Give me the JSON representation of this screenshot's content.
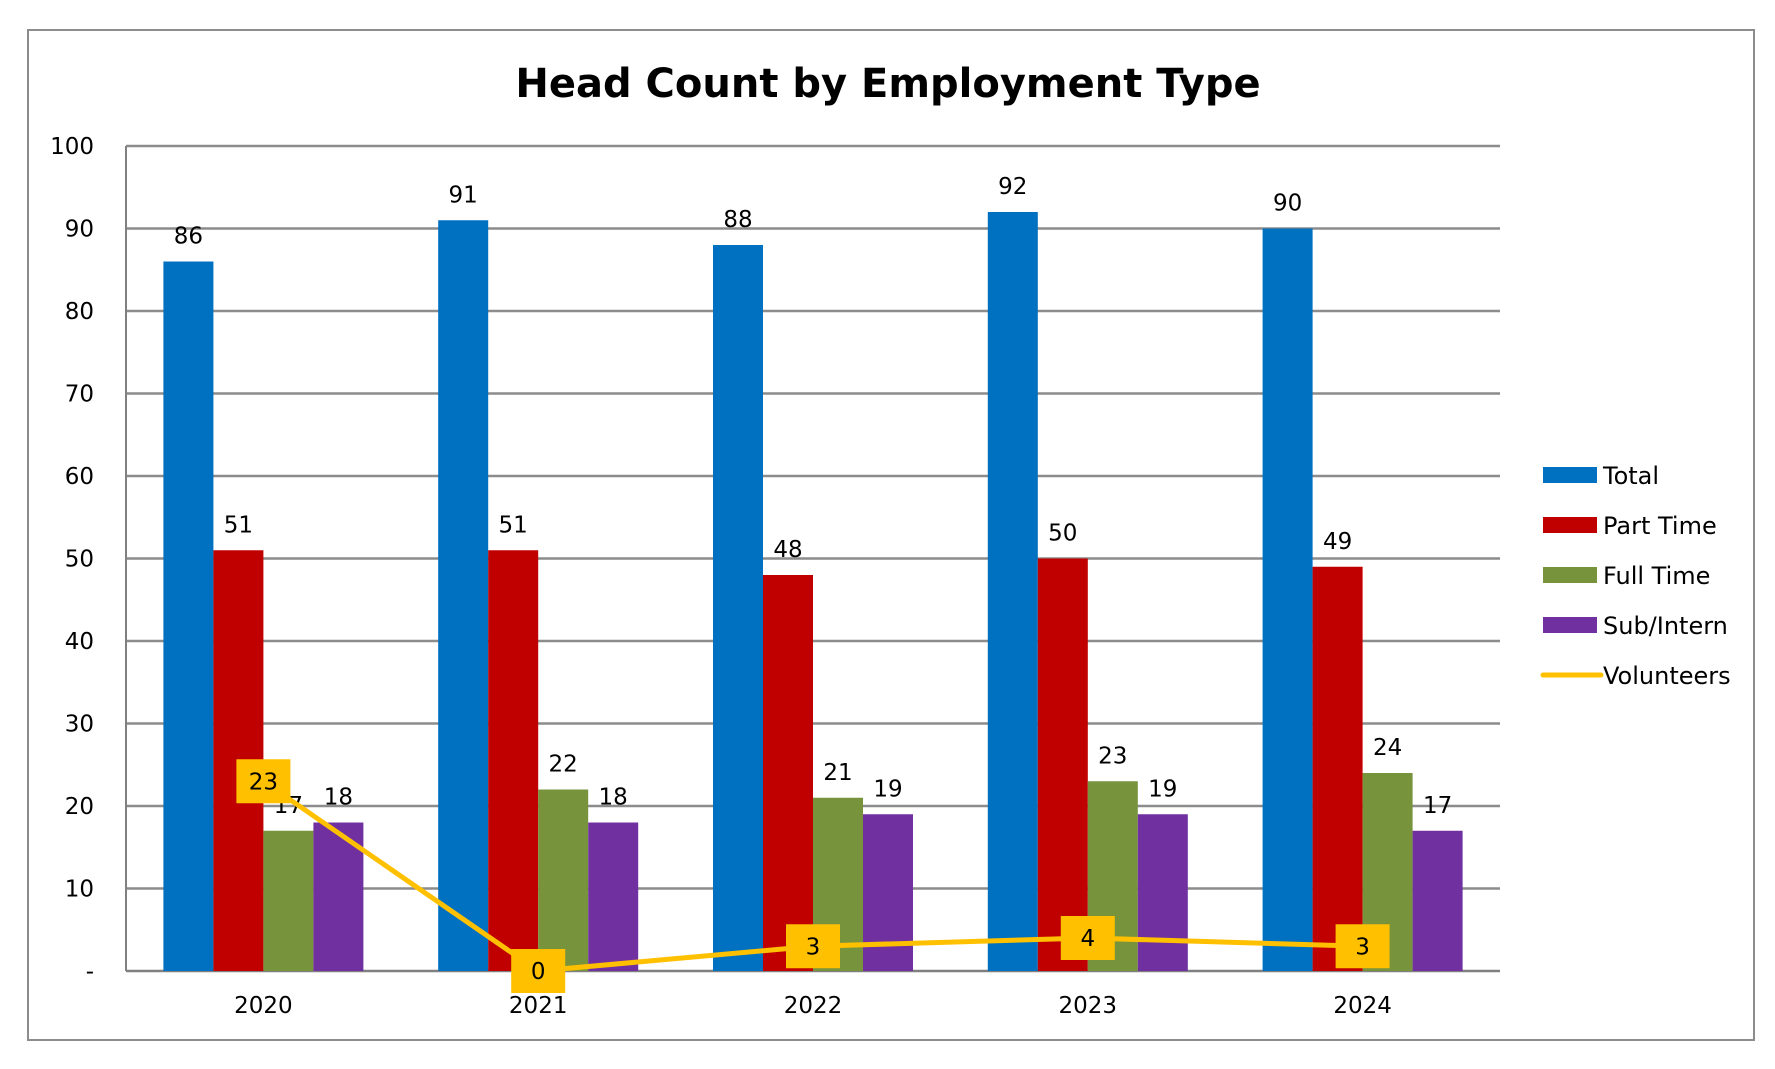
{
  "chart_data": {
    "type": "bar",
    "title": "Head Count by Employment Type",
    "categories": [
      "2020",
      "2021",
      "2022",
      "2023",
      "2024"
    ],
    "series": [
      {
        "name": "Total",
        "type": "bar",
        "color": "#0070C0",
        "values": [
          86,
          91,
          88,
          92,
          90
        ]
      },
      {
        "name": "Part Time",
        "type": "bar",
        "color": "#C00000",
        "values": [
          51,
          51,
          48,
          50,
          49
        ]
      },
      {
        "name": "Full Time",
        "type": "bar",
        "color": "#77933C",
        "values": [
          17,
          22,
          21,
          23,
          24
        ]
      },
      {
        "name": "Sub/Intern",
        "type": "bar",
        "color": "#7030A0",
        "values": [
          18,
          18,
          19,
          19,
          17
        ]
      },
      {
        "name": "Volunteers",
        "type": "line",
        "color": "#FFC000",
        "values": [
          23,
          0,
          3,
          4,
          3
        ]
      }
    ],
    "ylim": [
      0,
      100
    ],
    "yticks": [
      "-",
      "10",
      "20",
      "30",
      "40",
      "50",
      "60",
      "70",
      "80",
      "90",
      "100"
    ],
    "grid": true,
    "legend": "right"
  }
}
